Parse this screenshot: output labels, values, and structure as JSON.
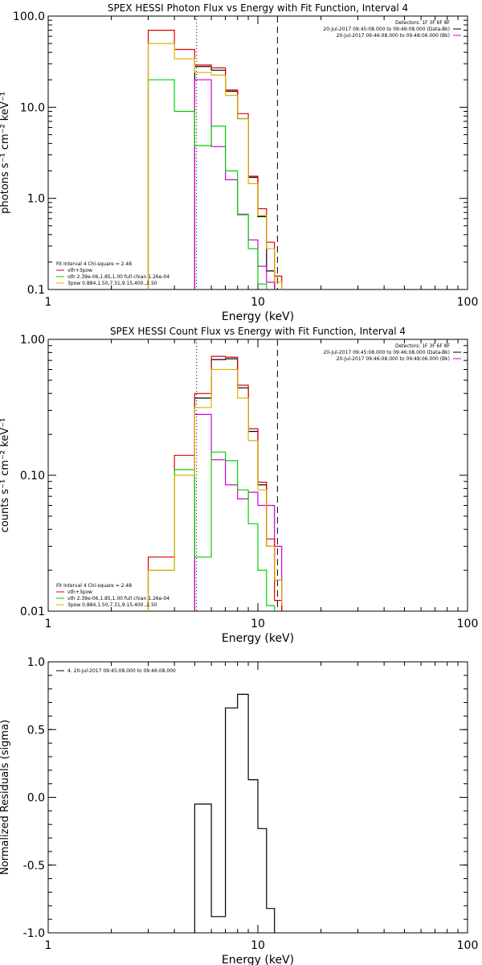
{
  "chart_data": [
    {
      "type": "line",
      "title": "SPEX HESSI Photon Flux vs Energy with Fit Function, Interval 4",
      "xlabel": "Energy (keV)",
      "ylabel": "photons s⁻¹ cm⁻² keV⁻¹",
      "xscale": "log",
      "yscale": "log",
      "xlim": [
        1,
        100
      ],
      "ylim": [
        0.1,
        100
      ],
      "xtick_labels": [
        "1",
        "10",
        "100"
      ],
      "ytick_labels": [
        "0.1",
        "1.0",
        "10.0",
        "100.0"
      ],
      "vlines": [
        {
          "x": 5.1,
          "style": "dotted"
        },
        {
          "x": 12.4,
          "style": "dashed"
        }
      ],
      "legend_topright": {
        "lines": [
          "Detectors: 1F 3F 6F 8F",
          "20-Jul-2017 09:45:08.000 to 09:46:08.000 (Data-Bk)",
          "20-Jul-2017 09:46:08.000 to 09:48:06.000 (Bk)"
        ],
        "colors": [
          "#000000",
          "#000000",
          "#d000d0"
        ]
      },
      "legend_bottomleft": {
        "header": "Fit Interval  4   Chi-square = 2.48",
        "entries": [
          {
            "label": "vth+3pow",
            "color": "#e00000"
          },
          {
            "label": "vth 2.39e-06,1.85,1.00   full chian 1.26e-04",
            "color": "#00d000"
          },
          {
            "label": "3pow 0.884,1.50,7.31,9.15,400.,2.50",
            "color": "#e0b000"
          }
        ]
      },
      "edges": [
        3.0,
        4.0,
        5.0,
        6.0,
        7.0,
        8.0,
        9.0,
        10.0,
        11.0,
        12.0,
        13.0
      ],
      "series": [
        {
          "name": "Data-Bk",
          "color": "#000000",
          "y": [
            null,
            null,
            28.0,
            25.5,
            15.0,
            7.5,
            1.7,
            0.63,
            0.16
          ]
        },
        {
          "name": "Bk",
          "color": "#d000d0",
          "y": [
            null,
            null,
            20.0,
            3.7,
            1.6,
            0.67,
            0.35,
            0.18,
            0.12
          ]
        },
        {
          "name": "vth+3pow",
          "color": "#e00000",
          "y": [
            70.0,
            43.0,
            29.0,
            27.0,
            15.5,
            8.5,
            1.75,
            0.77,
            0.33,
            0.14
          ]
        },
        {
          "name": "vth",
          "color": "#00d000",
          "y": [
            20.0,
            9.0,
            3.8,
            6.2,
            2.0,
            0.66,
            0.28,
            0.115
          ]
        },
        {
          "name": "3pow",
          "color": "#e0b000",
          "y": [
            50.0,
            34.0,
            24.0,
            22.5,
            13.5,
            7.5,
            1.45,
            0.65,
            0.28,
            0.12
          ]
        }
      ]
    },
    {
      "type": "line",
      "title": "SPEX HESSI Count Flux vs Energy with Fit Function, Interval 4",
      "xlabel": "Energy (keV)",
      "ylabel": "counts s⁻¹ cm⁻² keV⁻¹",
      "xscale": "log",
      "yscale": "log",
      "xlim": [
        1,
        100
      ],
      "ylim": [
        0.01,
        1.0
      ],
      "xtick_labels": [
        "1",
        "10",
        "100"
      ],
      "ytick_labels": [
        "0.01",
        "0.10",
        "1.00"
      ],
      "vlines": [
        {
          "x": 5.1,
          "style": "dotted"
        },
        {
          "x": 12.4,
          "style": "dashed"
        }
      ],
      "legend_topright": {
        "lines": [
          "Detectors: 1F 3F 6F 8F",
          "20-Jul-2017 09:45:08.000 to 09:46:08.000 (Data-Bk)",
          "20-Jul-2017 09:46:08.000 to 09:48:06.000 (Bk)"
        ],
        "colors": [
          "#000000",
          "#000000",
          "#d000d0"
        ]
      },
      "legend_bottomleft": {
        "header": "Fit Interval  4   Chi-square = 2.48",
        "entries": [
          {
            "label": "vth+3pow",
            "color": "#e00000"
          },
          {
            "label": "vth 2.39e-06,1.85,1.00   full chian 1.26e-04",
            "color": "#00d000"
          },
          {
            "label": "3pow 0.884,1.50,7.31,9.15,400.,2.50",
            "color": "#e0b000"
          }
        ]
      },
      "edges": [
        3.0,
        4.0,
        5.0,
        6.0,
        7.0,
        8.0,
        9.0,
        10.0,
        11.0,
        12.0,
        13.0
      ],
      "series": [
        {
          "name": "Data-Bk",
          "color": "#000000",
          "y": [
            null,
            null,
            0.37,
            0.71,
            0.72,
            0.44,
            0.21,
            0.085,
            0.03,
            0.017
          ]
        },
        {
          "name": "Bk",
          "color": "#d000d0",
          "y": [
            null,
            null,
            0.28,
            0.13,
            0.085,
            0.067,
            0.075,
            0.06,
            0.06,
            0.03
          ]
        },
        {
          "name": "vth+3pow",
          "color": "#e00000",
          "y": [
            0.025,
            0.14,
            0.4,
            0.75,
            0.74,
            0.46,
            0.22,
            0.089,
            0.034,
            0.012
          ]
        },
        {
          "name": "vth",
          "color": "#00d000",
          "y": [
            0.02,
            0.11,
            0.025,
            0.148,
            0.128,
            0.078,
            0.044,
            0.02,
            0.011
          ]
        },
        {
          "name": "3pow",
          "color": "#e0b000",
          "y": [
            0.02,
            0.1,
            0.315,
            0.6,
            0.6,
            0.37,
            0.18,
            0.078,
            0.03,
            0.017,
            0.011
          ]
        }
      ]
    },
    {
      "type": "line",
      "title": "",
      "xlabel": "Energy (keV)",
      "ylabel": "Normalized Residuals (sigma)",
      "xscale": "log",
      "yscale": "linear",
      "xlim": [
        1,
        100
      ],
      "ylim": [
        -1.0,
        1.0
      ],
      "xtick_labels": [
        "1",
        "10",
        "100"
      ],
      "ytick_labels": [
        "-1.0",
        "-0.5",
        "0.0",
        "0.5",
        "1.0"
      ],
      "legend_topleft": {
        "entries": [
          {
            "label": "4. 20-Jul-2017 09:45:08.000 to 09:46:08.000",
            "color": "#000000"
          }
        ]
      },
      "edges": [
        5.0,
        6.0,
        7.0,
        8.0,
        9.0,
        10.0,
        11.0,
        12.0
      ],
      "series": [
        {
          "name": "Residuals",
          "color": "#000000",
          "y": [
            -0.05,
            -0.88,
            0.66,
            0.76,
            0.13,
            -0.23,
            -0.82
          ]
        }
      ]
    }
  ]
}
